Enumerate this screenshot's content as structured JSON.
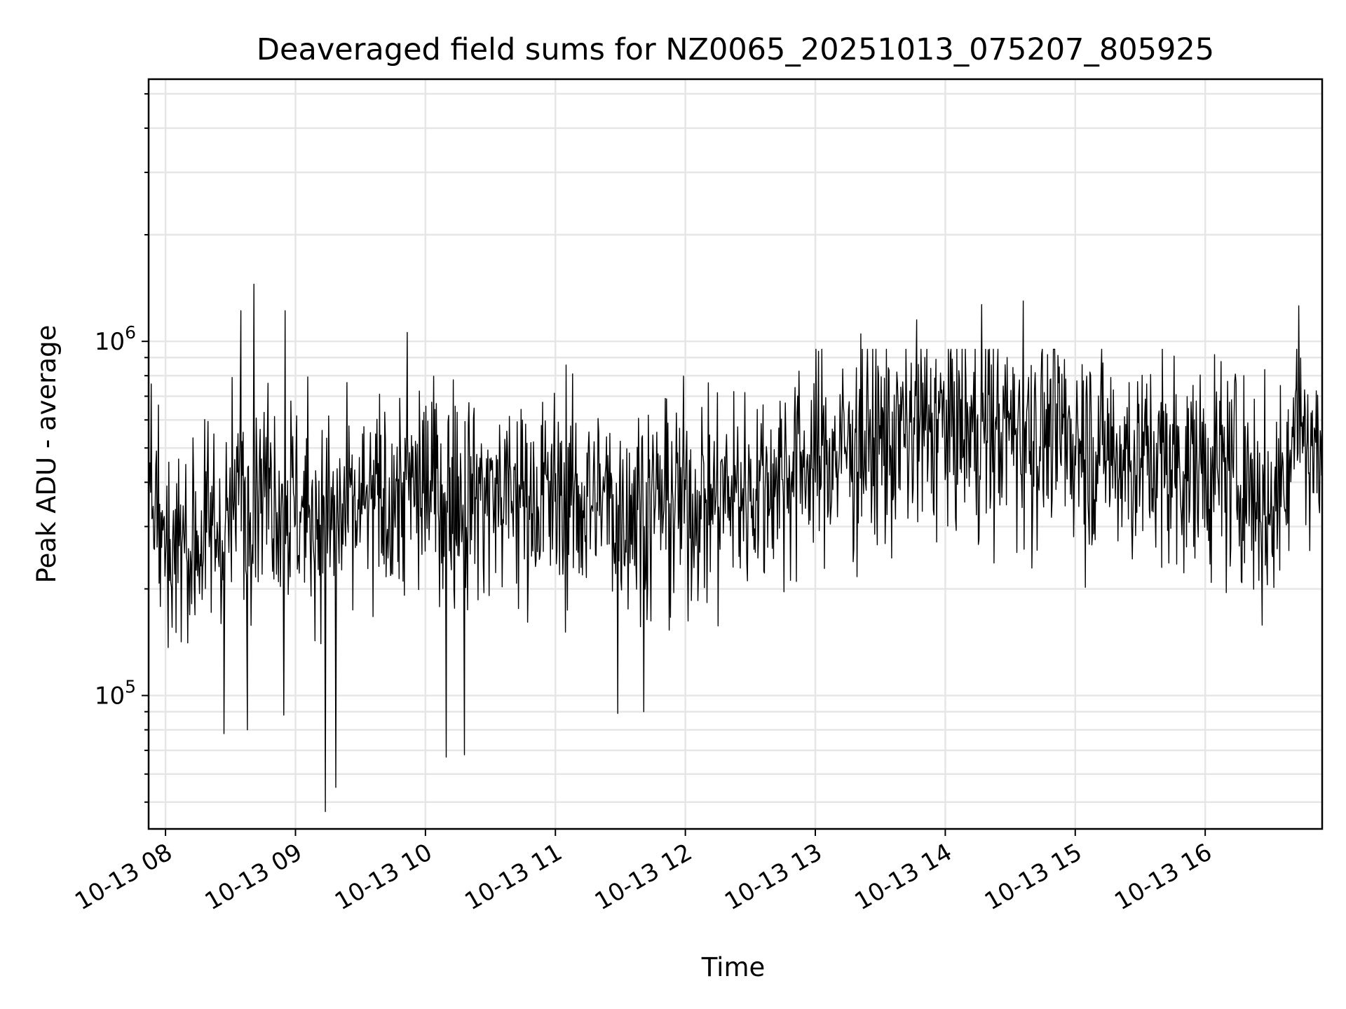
{
  "chart_data": {
    "type": "line",
    "title": "Deaveraged field sums for NZ0065_20251013_075207_805925",
    "xlabel": "Time",
    "ylabel": "Peak ADU - average",
    "yscale": "log",
    "ylim": [
      42000,
      5500000
    ],
    "xlim_hours": [
      7.87,
      16.9
    ],
    "grid": true,
    "x_tick_labels": [
      "10-13 08",
      "10-13 09",
      "10-13 10",
      "10-13 11",
      "10-13 12",
      "10-13 13",
      "10-13 14",
      "10-13 15",
      "10-13 16"
    ],
    "x_tick_hours": [
      8,
      9,
      10,
      11,
      12,
      13,
      14,
      15,
      16
    ],
    "y_tick_base": "10",
    "y_tick_exponents": [
      "5",
      "6"
    ],
    "y_tick_values": [
      100000,
      1000000
    ],
    "series": [
      {
        "name": "deaveraged field sum",
        "color": "#000000",
        "trend_hours": [
          7.87,
          8.0,
          8.3,
          8.5,
          8.7,
          9.0,
          9.3,
          9.6,
          10.0,
          10.5,
          11.0,
          11.5,
          12.0,
          12.5,
          12.8,
          13.0,
          13.3,
          13.6,
          14.0,
          14.3,
          14.6,
          15.0,
          15.3,
          15.6,
          16.0,
          16.3,
          16.5,
          16.7,
          16.9
        ],
        "trend_values": [
          400000,
          260000,
          280000,
          320000,
          430000,
          340000,
          310000,
          340000,
          390000,
          370000,
          360000,
          350000,
          350000,
          380000,
          440000,
          470000,
          500000,
          530000,
          580000,
          560000,
          560000,
          540000,
          480000,
          460000,
          440000,
          420000,
          320000,
          600000,
          450000
        ],
        "peaks": [
          {
            "hour": 8.68,
            "value": 1450000
          },
          {
            "hour": 8.58,
            "value": 1220000
          },
          {
            "hour": 8.92,
            "value": 1220000
          },
          {
            "hour": 9.86,
            "value": 1060000
          },
          {
            "hour": 13.35,
            "value": 1050000
          },
          {
            "hour": 13.78,
            "value": 1150000
          },
          {
            "hour": 14.28,
            "value": 1270000
          },
          {
            "hour": 14.6,
            "value": 1300000
          },
          {
            "hour": 16.72,
            "value": 1260000
          }
        ],
        "troughs": [
          {
            "hour": 9.23,
            "value": 47000
          },
          {
            "hour": 9.31,
            "value": 55000
          },
          {
            "hour": 10.16,
            "value": 67000
          },
          {
            "hour": 10.3,
            "value": 68000
          },
          {
            "hour": 8.45,
            "value": 78000
          },
          {
            "hour": 8.63,
            "value": 80000
          },
          {
            "hour": 8.91,
            "value": 88000
          },
          {
            "hour": 11.48,
            "value": 89000
          },
          {
            "hour": 11.68,
            "value": 90000
          }
        ]
      }
    ]
  }
}
